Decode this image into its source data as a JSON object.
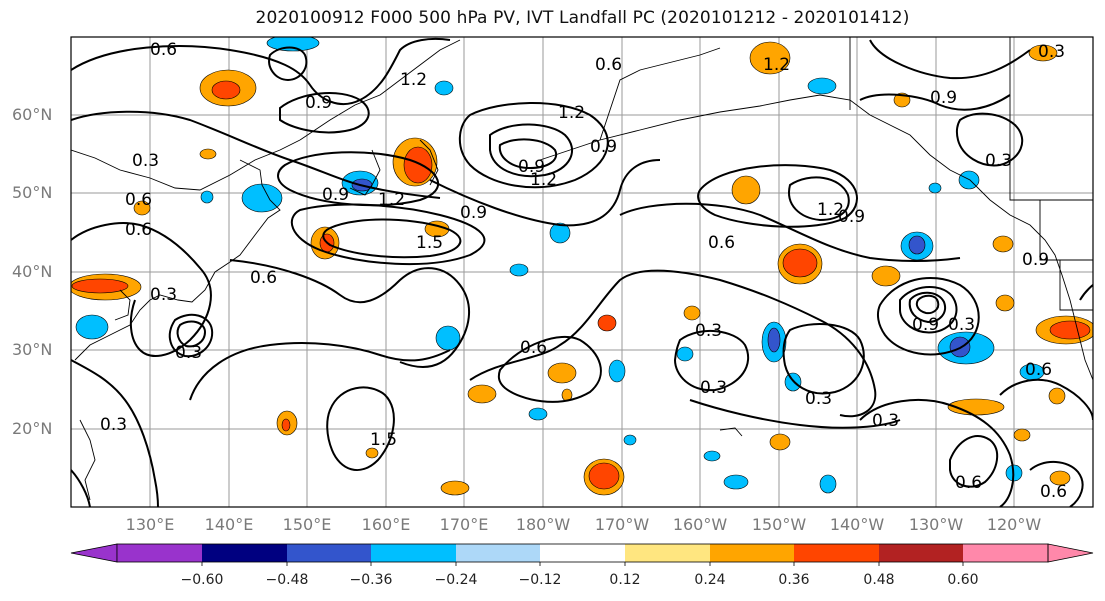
{
  "title": "2020100912 F000 500 hPa PV, IVT Landfall PC (2020101212 - 2020101412)",
  "lat_labels": [
    "60°N",
    "50°N",
    "40°N",
    "30°N",
    "20°N"
  ],
  "lon_labels": [
    "130°E",
    "140°E",
    "150°E",
    "160°E",
    "170°E",
    "180°W",
    "170°W",
    "160°W",
    "150°W",
    "140°W",
    "130°W",
    "120°W"
  ],
  "colorbar": {
    "ticks": [
      "−0.60",
      "−0.48",
      "−0.36",
      "−0.24",
      "−0.12",
      "0.12",
      "0.24",
      "0.36",
      "0.48",
      "0.60"
    ],
    "colors": [
      "#9933cc",
      "#000080",
      "#3355cc",
      "#00bfff",
      "#add8f8",
      "#ffffff",
      "#ffe680",
      "#ffa500",
      "#ff4500",
      "#b22222",
      "#ff88aa"
    ]
  },
  "contour_labels": [
    "0.6",
    "0.9",
    "1.2",
    "0.3",
    "0.6",
    "0.6",
    "0.9",
    "1.2",
    "0.9",
    "1.5",
    "1.2",
    "0.6",
    "0.9",
    "0.9",
    "0.6",
    "0.3",
    "0.6",
    "0.3",
    "0.6",
    "0.3",
    "0.3",
    "0.3",
    "0.3",
    "0.6",
    "0.6",
    "0.3",
    "1.5",
    "1.2",
    "0.9",
    "1.2",
    "0.9",
    "0.3",
    "0.3",
    "0.9",
    "0.6",
    "0.9",
    "0.3",
    "1.2"
  ]
}
